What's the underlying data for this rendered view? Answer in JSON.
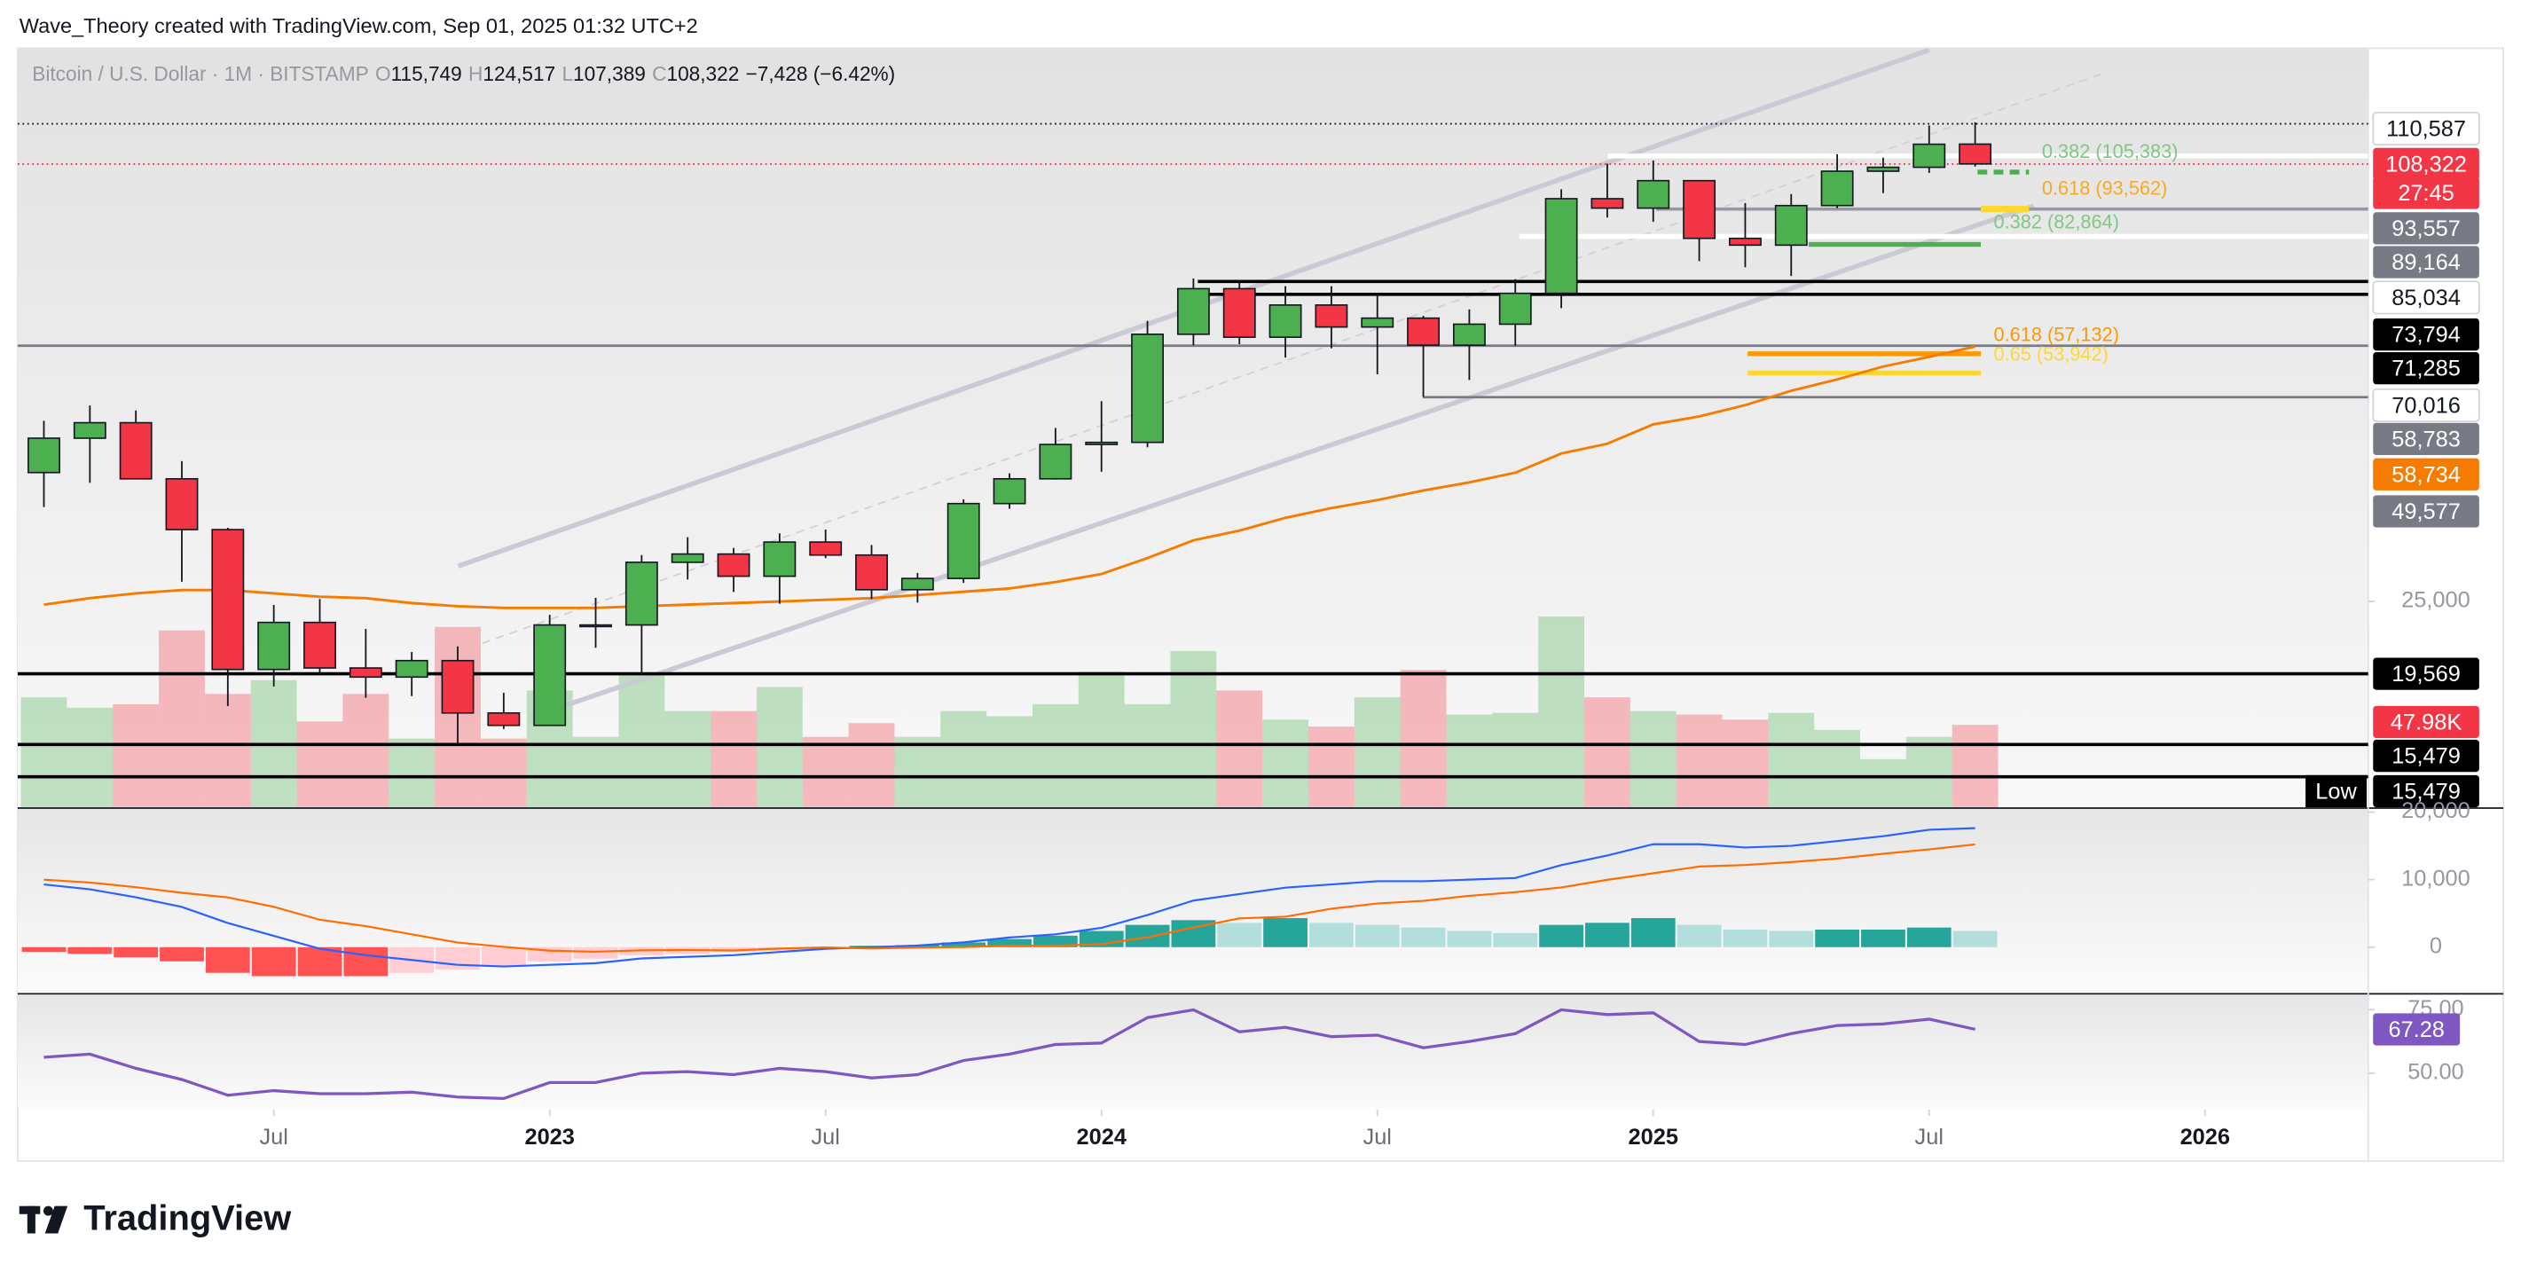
{
  "watermark": "Wave_Theory created with TradingView.com, Sep 01, 2025 01:32 UTC+2",
  "footer": "TradingView",
  "chart_data": [
    {
      "type": "candlestick",
      "title": "Bitcoin / U.S. Dollar · 1M · BITSTAMP",
      "ohlc_labels": [
        {
          "key": "O",
          "label": "115,749"
        },
        {
          "key": "H",
          "label": "124,517"
        },
        {
          "key": "L",
          "label": "107,389"
        },
        {
          "key": "C",
          "label": "108,322"
        }
      ],
      "change_label": "−7,428 (−6.42%)",
      "x": [
        1,
        2,
        3,
        4,
        5,
        6,
        7,
        8,
        9,
        10,
        11,
        12,
        13,
        14,
        15,
        16,
        17,
        18,
        19,
        20,
        21,
        22,
        23,
        24,
        25,
        26,
        27,
        28,
        29,
        30,
        31,
        32,
        33,
        34,
        35,
        36,
        37,
        38,
        39,
        40,
        41,
        42,
        43
      ],
      "xlim": [
        0.43,
        51.55
      ],
      "xticks": [
        {
          "value": 6,
          "label": "Jul"
        },
        {
          "value": 12,
          "label": "2023"
        },
        {
          "value": 18,
          "label": "Jul"
        },
        {
          "value": 24,
          "label": "2024"
        },
        {
          "value": 30,
          "label": "Jul"
        },
        {
          "value": 36,
          "label": "2025"
        },
        {
          "value": 42,
          "label": "Jul"
        },
        {
          "value": 48,
          "label": "2026"
        }
      ],
      "ylim": [
        12540,
        159600
      ],
      "log_scale": true,
      "yticks": [
        {
          "value": 25000,
          "label": "25,000"
        }
      ],
      "up_color": "#4caf50",
      "down_color": "#f23645",
      "open": [
        38500,
        43200,
        45500,
        37700,
        31800,
        19900,
        23300,
        20000,
        19400,
        20500,
        17200,
        16500,
        23100,
        23100,
        28500,
        29300,
        27200,
        30500,
        29200,
        26000,
        27000,
        34700,
        37700,
        42300,
        42600,
        61200,
        71300,
        60600,
        67500,
        62700,
        64600,
        59000,
        63300,
        70200,
        96400,
        93400,
        102400,
        84400,
        82500,
        94200,
        105700,
        107100,
        115749
      ],
      "high": [
        45800,
        48200,
        47400,
        40000,
        32000,
        24700,
        25200,
        22800,
        21100,
        21500,
        18400,
        23900,
        25300,
        29200,
        31000,
        29900,
        31400,
        31800,
        30200,
        27500,
        35200,
        38400,
        44700,
        48900,
        64000,
        73800,
        72800,
        71900,
        71900,
        70000,
        65100,
        66500,
        73600,
        99500,
        108400,
        109600,
        102500,
        95000,
        97900,
        111900,
        110600,
        123200,
        124517
      ],
      "low": [
        34300,
        37200,
        37700,
        26700,
        17600,
        18800,
        19600,
        18100,
        18200,
        15500,
        16300,
        16500,
        21400,
        19600,
        26900,
        25800,
        24800,
        28900,
        25200,
        24900,
        26600,
        34100,
        37600,
        38600,
        41900,
        59000,
        59200,
        56600,
        58400,
        53500,
        49600,
        52500,
        58900,
        66800,
        90500,
        89200,
        78200,
        76600,
        74400,
        93400,
        98200,
        105100,
        107389
      ],
      "close": [
        43200,
        45500,
        37700,
        31800,
        19900,
        23300,
        20000,
        19400,
        20500,
        17200,
        16500,
        23100,
        23100,
        28500,
        29300,
        27200,
        30500,
        29200,
        26000,
        27000,
        34700,
        37700,
        42300,
        42600,
        61200,
        71300,
        60600,
        67500,
        62700,
        64600,
        59000,
        63300,
        70200,
        96400,
        93400,
        102400,
        84400,
        82500,
        94200,
        105700,
        107100,
        115700,
        108322
      ],
      "moving_average": {
        "color": "#f57c00",
        "values": [
          24730,
          25270,
          25680,
          25970,
          25970,
          25680,
          25400,
          25270,
          24860,
          24600,
          24460,
          24460,
          24460,
          24600,
          24730,
          24860,
          24990,
          25130,
          25270,
          25540,
          25820,
          26110,
          26670,
          27400,
          28910,
          30680,
          31690,
          33080,
          34180,
          35110,
          36260,
          37250,
          38480,
          41040,
          42400,
          45240,
          46470,
          48260,
          50650,
          52600,
          54920,
          56730,
          58734
        ]
      },
      "volume": {
        "vlim": [
          0,
          442
        ],
        "up_color": "rgba(76,175,80,0.32)",
        "down_color": "rgba(242,54,69,0.32)",
        "values": [
          64,
          58,
          60,
          103,
          66,
          74,
          50,
          66,
          40,
          105,
          40,
          68,
          41,
          77,
          56,
          56,
          70,
          41,
          49,
          41,
          56,
          53,
          60,
          79,
          60,
          91,
          68,
          51,
          47,
          64,
          80,
          54,
          55,
          111,
          64,
          56,
          54,
          51,
          55,
          45,
          28,
          41,
          47.98
        ]
      },
      "price_labels": [
        {
          "label": "110,587",
          "bg": "#ffffff",
          "fg": "#131722"
        },
        {
          "label": "108,322",
          "bg": "#f23645",
          "fg": "#ffffff"
        },
        {
          "label": "27:45",
          "bg": "#f23645",
          "fg": "#ffffff"
        },
        {
          "label": "93,557",
          "bg": "#787b86",
          "fg": "#ffffff"
        },
        {
          "label": "89,164",
          "bg": "#787b86",
          "fg": "#ffffff"
        },
        {
          "label": "85,034",
          "bg": "#ffffff",
          "fg": "#131722"
        },
        {
          "label": "73,794",
          "bg": "#000000",
          "fg": "#ffffff"
        },
        {
          "label": "71,285",
          "bg": "#000000",
          "fg": "#ffffff"
        },
        {
          "label": "70,016",
          "bg": "#ffffff",
          "fg": "#131722"
        },
        {
          "label": "58,783",
          "bg": "#787b86",
          "fg": "#ffffff"
        },
        {
          "label": "58,734",
          "bg": "#f57c00",
          "fg": "#ffffff"
        },
        {
          "label": "49,577",
          "bg": "#787b86",
          "fg": "#ffffff"
        },
        {
          "label": "19,569",
          "bg": "#000000",
          "fg": "#ffffff"
        },
        {
          "label": "47.98K",
          "bg": "#f23645",
          "fg": "#ffffff"
        },
        {
          "label": "15,479",
          "bg": "#000000",
          "fg": "#ffffff"
        },
        {
          "label": "15,479",
          "tag": "Low",
          "bg": "#000000",
          "fg": "#ffffff"
        }
      ],
      "annotations": [
        {
          "text": "0.382 (105,383)",
          "color": "#81c784"
        },
        {
          "text": "0.618 (93,562)",
          "color": "#f9a825"
        },
        {
          "text": "0.382 (82,864)",
          "color": "#81c784"
        },
        {
          "text": "0.618 (57,132)",
          "color": "#ff9800"
        },
        {
          "text": "0.65 (53,942)",
          "color": "#fdd835"
        }
      ]
    },
    {
      "type": "macd",
      "ylim": [
        -6670,
        20000
      ],
      "yticks": [
        0,
        {
          "value": 10000,
          "label": "10,000"
        },
        {
          "value": 20000,
          "label": "20,000"
        }
      ],
      "macd": {
        "color": "#2962ff",
        "values": [
          9290,
          8570,
          7380,
          5950,
          3570,
          1670,
          -240,
          -1190,
          -1900,
          -2620,
          -2860,
          -2620,
          -2380,
          -1670,
          -1430,
          -1190,
          -710,
          -240,
          0,
          240,
          710,
          1430,
          1900,
          2860,
          4760,
          6900,
          7860,
          8810,
          9290,
          9760,
          9760,
          10000,
          10240,
          12140,
          13570,
          15240,
          15240,
          14760,
          15000,
          15710,
          16430,
          17380,
          17620
        ]
      },
      "signal": {
        "color": "#ff6d00",
        "values": [
          9990,
          9570,
          8880,
          8050,
          7370,
          5970,
          4060,
          3110,
          1900,
          680,
          40,
          -520,
          -680,
          -470,
          -430,
          -490,
          -210,
          -40,
          -200,
          -60,
          10,
          230,
          200,
          460,
          1460,
          2900,
          4260,
          4510,
          5690,
          6460,
          6860,
          7600,
          8140,
          8840,
          9970,
          10940,
          11940,
          12160,
          12600,
          13110,
          13830,
          14480,
          15220
        ]
      },
      "histogram": {
        "colors": {
          "pos_up": "#26a69a",
          "pos_down": "#b2dfdb",
          "neg_down": "#ff5252",
          "neg_up": "#ffcdd2"
        },
        "values": [
          -700,
          -1000,
          -1500,
          -2100,
          -3800,
          -4300,
          -4300,
          -4300,
          -3800,
          -3300,
          -2900,
          -2100,
          -1700,
          -1200,
          -1000,
          -700,
          -500,
          -200,
          200,
          300,
          700,
          1200,
          1700,
          2400,
          3300,
          4000,
          3600,
          4300,
          3600,
          3300,
          2900,
          2400,
          2100,
          3300,
          3600,
          4300,
          3300,
          2600,
          2400,
          2600,
          2600,
          2900,
          2400
        ]
      }
    },
    {
      "type": "rsi",
      "ylim": [
        36.9,
        79.4
      ],
      "yticks": [
        {
          "value": 50,
          "label": "50.00"
        },
        {
          "value": 75,
          "label": "75.00"
        }
      ],
      "color": "#7e57c2",
      "values": [
        56.3,
        57.5,
        51.9,
        47.5,
        41.3,
        43.1,
        41.9,
        41.9,
        42.5,
        40.6,
        40.0,
        46.3,
        46.3,
        50.0,
        50.6,
        49.4,
        51.9,
        50.6,
        48.1,
        49.4,
        55.0,
        57.5,
        61.3,
        61.9,
        71.9,
        75.0,
        66.3,
        68.1,
        64.4,
        65.0,
        60.0,
        62.5,
        65.6,
        75.0,
        73.1,
        73.8,
        62.5,
        61.3,
        65.6,
        68.8,
        69.4,
        71.3,
        67.28
      ]
    }
  ]
}
